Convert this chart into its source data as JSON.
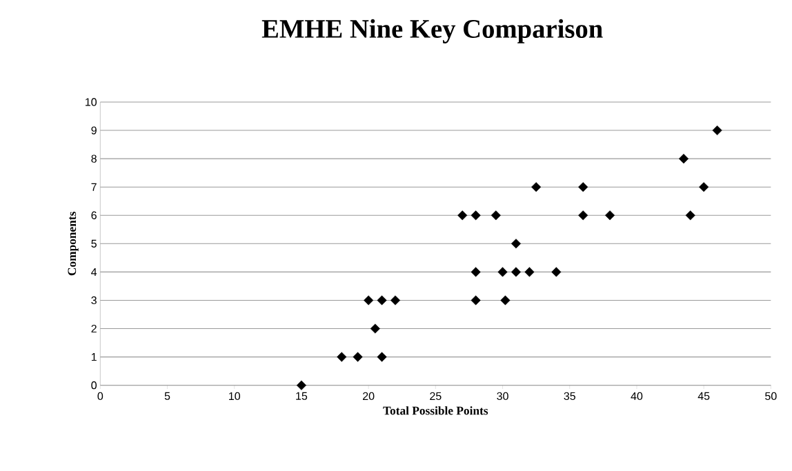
{
  "chart_data": {
    "type": "scatter",
    "title": "EMHE Nine Key Comparison",
    "xlabel": "Total Possible Points",
    "ylabel": "Components",
    "x": [
      15,
      18,
      19.2,
      21,
      20.5,
      20,
      21,
      22,
      28,
      30.2,
      28,
      30,
      31,
      32,
      34,
      31,
      27,
      28,
      29.5,
      36,
      38,
      44,
      32.5,
      36,
      45,
      43.5,
      46
    ],
    "values": [
      0,
      1,
      1,
      1,
      2,
      3,
      3,
      3,
      3,
      3,
      4,
      4,
      4,
      4,
      4,
      5,
      6,
      6,
      6,
      6,
      6,
      6,
      7,
      7,
      7,
      8,
      9
    ],
    "color": "#000000",
    "marker": "diamond",
    "grid": "y",
    "xlim": [
      0,
      50
    ],
    "xticks": [
      0,
      5,
      10,
      15,
      20,
      25,
      30,
      35,
      40,
      45,
      50
    ],
    "ylim": [
      0,
      10
    ],
    "yticks": [
      0,
      1,
      2,
      3,
      4,
      5,
      6,
      7,
      8,
      9,
      10
    ]
  }
}
